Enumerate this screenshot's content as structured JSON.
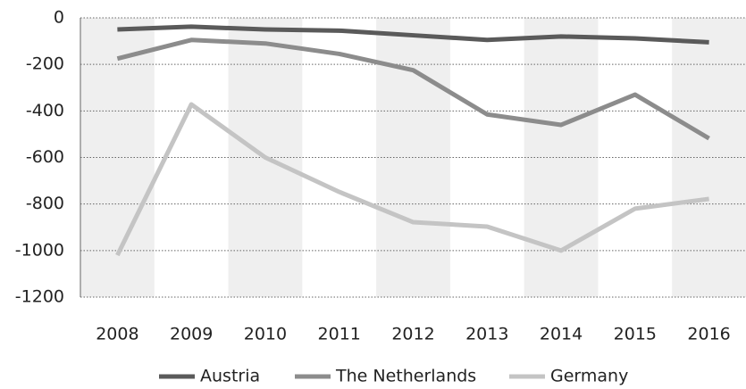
{
  "chart_data": {
    "type": "line",
    "categories": [
      "2008",
      "2009",
      "2010",
      "2011",
      "2012",
      "2013",
      "2014",
      "2015",
      "2016"
    ],
    "series": [
      {
        "name": "Austria",
        "color": "#5a5a5a",
        "values": [
          -50,
          -38,
          -50,
          -55,
          -75,
          -95,
          -80,
          -88,
          -105
        ]
      },
      {
        "name": "The Netherlands",
        "color": "#8c8c8c",
        "values": [
          -175,
          -95,
          -110,
          -155,
          -225,
          -415,
          -460,
          -330,
          -518
        ]
      },
      {
        "name": "Germany",
        "color": "#c4c4c4",
        "values": [
          -1020,
          -372,
          -600,
          -748,
          -878,
          -897,
          -1000,
          -820,
          -778
        ]
      }
    ],
    "ylim": [
      -1200,
      0
    ],
    "yticks": [
      -1200,
      -1000,
      -800,
      -600,
      -400,
      -200,
      0
    ],
    "grid": true,
    "legend": "bottom"
  }
}
